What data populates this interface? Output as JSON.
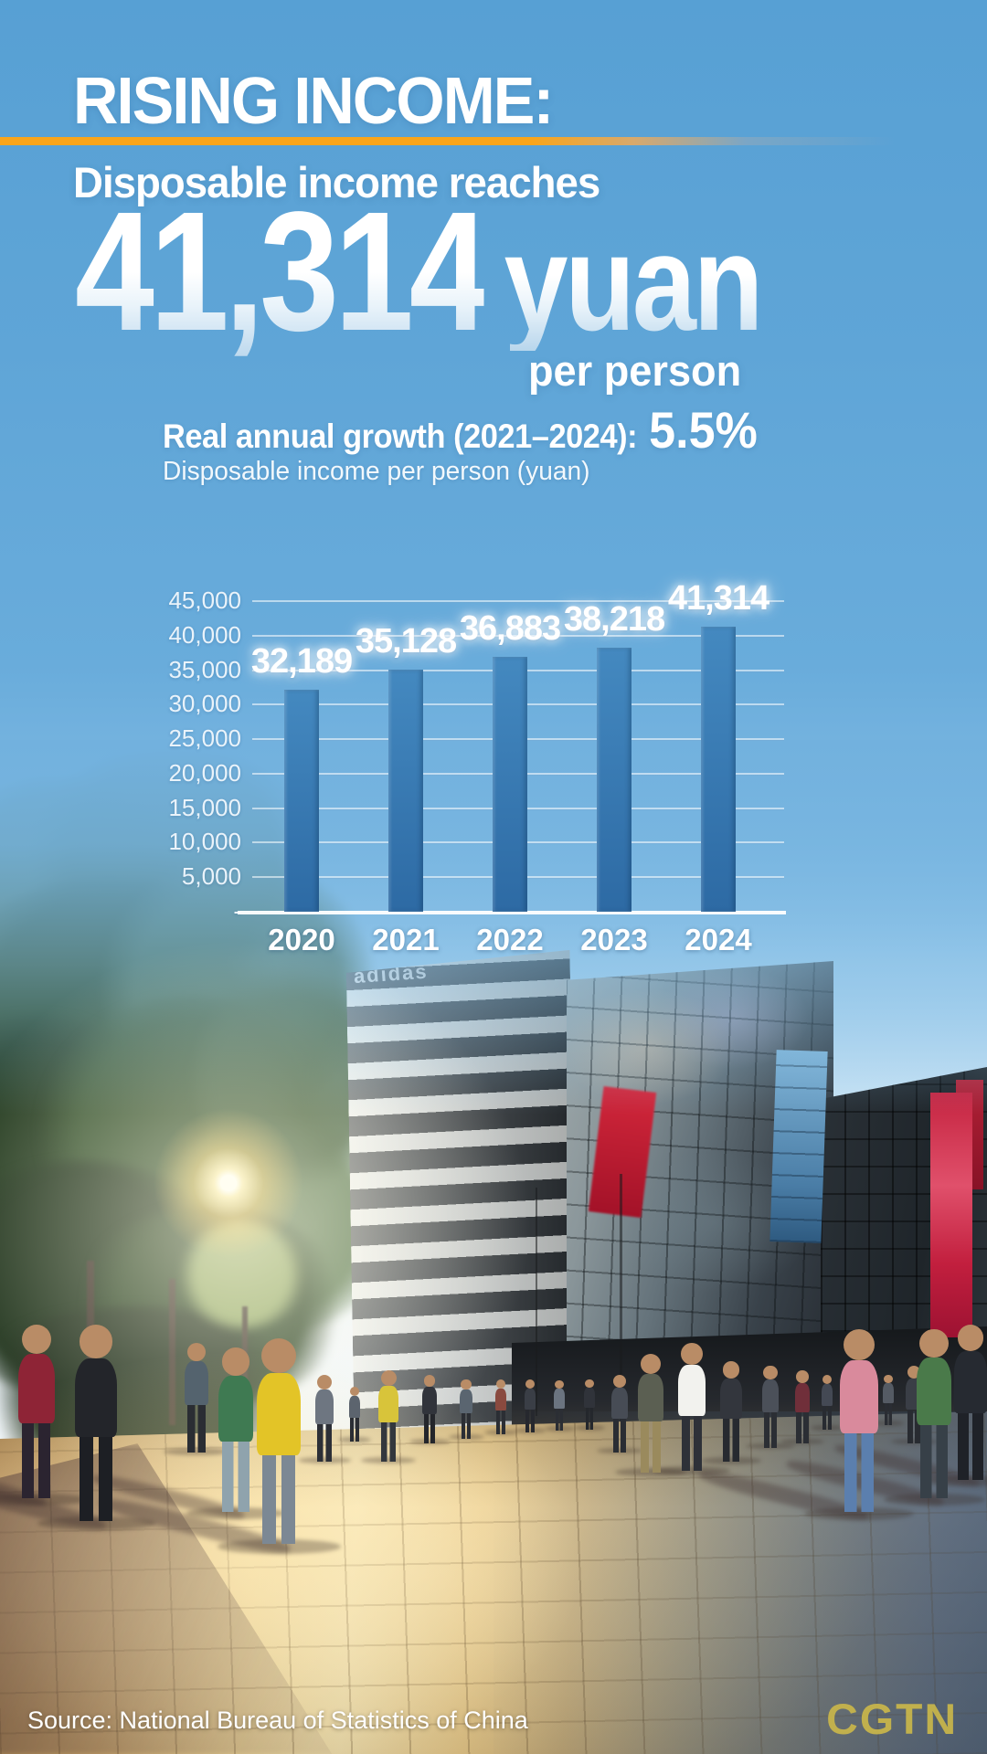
{
  "page": {
    "kicker": "RISING INCOME:",
    "subtitle": "Disposable income reaches",
    "hero_value": "41,314",
    "hero_unit": "yuan",
    "hero_per": "per person",
    "source": "Source: National Bureau of Statistics of China",
    "logo": "CGTN"
  },
  "scene": {
    "building_sign": "adidas"
  },
  "colors": {
    "sky_blue": "#69acdb",
    "accent_orange": "#f9a51b",
    "bar_top": "#4489c0",
    "bar_bottom": "#2d6aa4",
    "logo_gold": "#c9b64b",
    "banner_red": "#c52440"
  },
  "chart_data": {
    "type": "bar",
    "title": "Real annual growth (2021–2024):",
    "title_value": "5.5%",
    "ylabel": "Disposable income per person (yuan)",
    "categories": [
      "2020",
      "2021",
      "2022",
      "2023",
      "2024"
    ],
    "values": [
      32189,
      35128,
      36883,
      38218,
      41314
    ],
    "value_labels": [
      "32,189",
      "35,128",
      "36,883",
      "38,218",
      "41,314"
    ],
    "ylim": [
      0,
      45000
    ],
    "ytick_step": 5000,
    "ytick_labels": [
      "45,000",
      "40,000",
      "35,000",
      "30,000",
      "25,000",
      "20,000",
      "15,000",
      "10,000",
      "5,000",
      "-"
    ],
    "grid": true,
    "legend": null
  }
}
